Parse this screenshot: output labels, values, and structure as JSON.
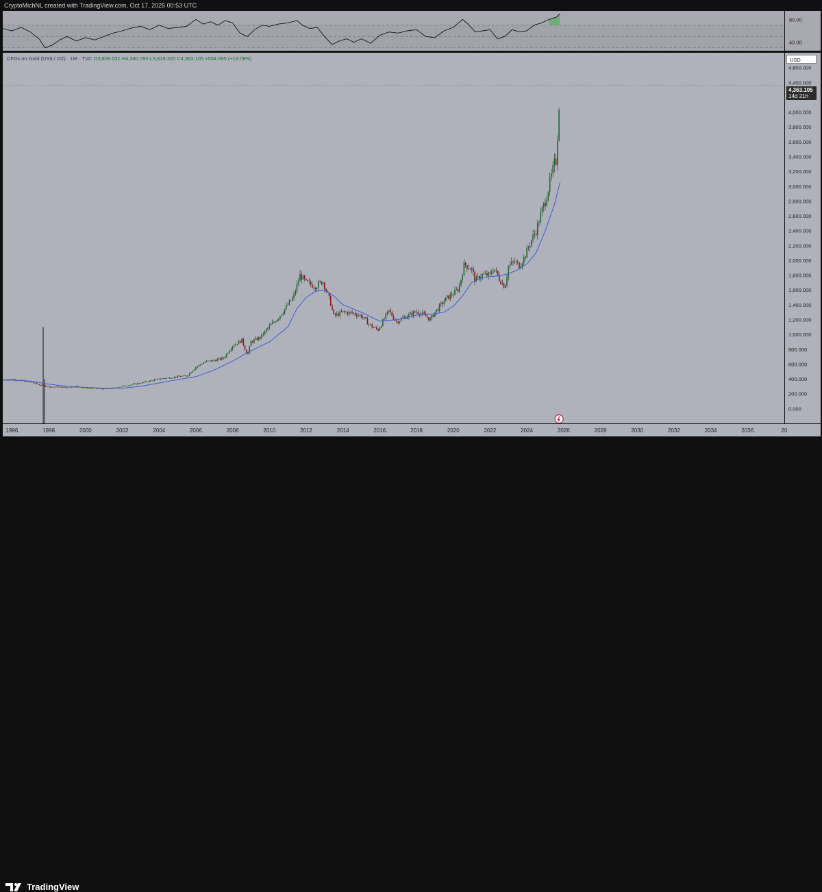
{
  "header": {
    "title": "CryptoMichNL created with TradingView.com, Oct 17, 2025 00:53 UTC"
  },
  "symbol": {
    "name": "CFDs on Gold (US$ / OZ) · 1M · TVC",
    "open": "O3,859.031",
    "high": "H4,380.790",
    "low": "L3,819.320",
    "close": "C4,363.105",
    "change": "+504.695 (+13.08%)"
  },
  "currency": "USD",
  "last_price": {
    "value": "4,363.105",
    "countdown": "14d 21h"
  },
  "footer": {
    "brand": "TradingView"
  },
  "colors": {
    "up": "#1d6b2c",
    "down": "#8b1a1a",
    "ma": "#3d5bd9",
    "rsi_line": "#111111",
    "rsi_overbought": "#4caf50",
    "rsi_oversold": "#e53935"
  },
  "chart_data": [
    {
      "type": "line",
      "panel": "RSI",
      "y_ticks": [
        "80.00",
        "40.00"
      ],
      "ylim": [
        25,
        95
      ],
      "bands": [
        70,
        50,
        30
      ],
      "x": [
        1995.5,
        1996.0,
        1996.5,
        1997.0,
        1997.5,
        1997.8,
        1998.2,
        1998.6,
        1999.0,
        1999.5,
        2000.0,
        2000.5,
        2001.0,
        2001.5,
        2002.0,
        2002.5,
        2003.0,
        2003.5,
        2004.0,
        2004.5,
        2005.0,
        2005.5,
        2006.0,
        2006.4,
        2006.8,
        2007.2,
        2007.6,
        2008.0,
        2008.4,
        2008.8,
        2009.2,
        2009.6,
        2010.0,
        2010.5,
        2011.0,
        2011.5,
        2011.8,
        2012.2,
        2012.6,
        2013.0,
        2013.4,
        2013.8,
        2014.2,
        2014.6,
        2015.0,
        2015.5,
        2016.0,
        2016.5,
        2017.0,
        2017.5,
        2018.0,
        2018.5,
        2019.0,
        2019.5,
        2020.0,
        2020.5,
        2020.8,
        2021.2,
        2021.6,
        2022.0,
        2022.4,
        2022.8,
        2023.2,
        2023.6,
        2024.0,
        2024.4,
        2024.8,
        2025.2,
        2025.6,
        2025.8
      ],
      "values": [
        64,
        60,
        66,
        58,
        45,
        30,
        35,
        44,
        50,
        42,
        48,
        44,
        50,
        56,
        60,
        65,
        68,
        62,
        70,
        64,
        66,
        68,
        80,
        72,
        76,
        70,
        78,
        74,
        56,
        50,
        62,
        70,
        68,
        72,
        74,
        78,
        70,
        64,
        66,
        50,
        36,
        42,
        46,
        40,
        46,
        38,
        52,
        58,
        56,
        60,
        62,
        50,
        48,
        60,
        66,
        80,
        72,
        58,
        60,
        62,
        46,
        50,
        62,
        58,
        60,
        70,
        74,
        80,
        84,
        90
      ],
      "x_range": [
        1995.5,
        2038.0
      ]
    },
    {
      "type": "candlestick",
      "panel": "price",
      "y_ticks": [
        "4,600.000",
        "4,400.000",
        "4,200.000",
        "4,000.000",
        "3,800.000",
        "3,600.000",
        "3,400.000",
        "3,200.000",
        "3,000.000",
        "2,800.000",
        "2,600.000",
        "2,400.000",
        "2,200.000",
        "2,000.000",
        "1,800.000",
        "1,600.000",
        "1,400.000",
        "1,200.000",
        "1,000.000",
        "800.000",
        "600.000",
        "400.000",
        "200.000",
        "0.000"
      ],
      "ylim": [
        -200,
        4800
      ],
      "x_ticks": [
        "1996",
        "1998",
        "2000",
        "2002",
        "2004",
        "2006",
        "2008",
        "2010",
        "2012",
        "2014",
        "2016",
        "2018",
        "2020",
        "2022",
        "2024",
        "2026",
        "2028",
        "2030",
        "2032",
        "2034",
        "2036",
        "20"
      ],
      "x_range": [
        1995.5,
        2038.0
      ],
      "price_x": [
        1995.5,
        1996.0,
        1997.0,
        1997.5,
        1998.0,
        1999.0,
        1999.5,
        2000.0,
        2001.0,
        2001.5,
        2002.0,
        2003.0,
        2004.0,
        2005.0,
        2005.5,
        2006.0,
        2006.5,
        2007.0,
        2007.5,
        2008.0,
        2008.5,
        2008.8,
        2009.0,
        2009.5,
        2010.0,
        2010.5,
        2011.0,
        2011.3,
        2011.67,
        2012.0,
        2012.5,
        2012.9,
        2013.3,
        2013.5,
        2014.0,
        2014.5,
        2015.0,
        2015.5,
        2015.9,
        2016.5,
        2016.9,
        2017.5,
        2018.0,
        2018.5,
        2018.75,
        2019.0,
        2019.6,
        2020.0,
        2020.3,
        2020.6,
        2021.0,
        2021.2,
        2021.5,
        2022.0,
        2022.2,
        2022.5,
        2022.8,
        2023.0,
        2023.3,
        2023.6,
        2023.9,
        2024.2,
        2024.5,
        2024.8,
        2025.0,
        2025.3,
        2025.5,
        2025.6,
        2025.7,
        2025.8
      ],
      "price_close": [
        385,
        395,
        360,
        320,
        295,
        285,
        300,
        280,
        265,
        275,
        300,
        345,
        400,
        430,
        440,
        560,
        630,
        650,
        680,
        850,
        920,
        720,
        900,
        960,
        1110,
        1230,
        1400,
        1500,
        1800,
        1700,
        1650,
        1720,
        1450,
        1250,
        1300,
        1290,
        1250,
        1120,
        1060,
        1320,
        1170,
        1250,
        1310,
        1250,
        1200,
        1300,
        1480,
        1550,
        1620,
        1950,
        1880,
        1720,
        1800,
        1800,
        1900,
        1750,
        1640,
        1920,
        1980,
        1930,
        2060,
        2250,
        2400,
        2650,
        2800,
        3100,
        3300,
        3350,
        3850,
        4363
      ],
      "ma_x": [
        1995.5,
        1997.0,
        1998.0,
        1999.0,
        2000.0,
        2001.0,
        2002.0,
        2003.0,
        2004.0,
        2005.0,
        2006.0,
        2007.0,
        2008.0,
        2009.0,
        2010.0,
        2011.0,
        2011.5,
        2012.0,
        2012.5,
        2013.0,
        2013.5,
        2014.0,
        2015.0,
        2016.0,
        2017.0,
        2018.0,
        2019.0,
        2019.5,
        2020.0,
        2020.5,
        2021.0,
        2021.5,
        2022.0,
        2022.5,
        2023.0,
        2023.5,
        2024.0,
        2024.5,
        2025.0,
        2025.5,
        2025.8
      ],
      "ma_values": [
        390,
        370,
        330,
        300,
        285,
        275,
        275,
        300,
        345,
        390,
        430,
        520,
        640,
        780,
        900,
        1100,
        1350,
        1500,
        1580,
        1600,
        1520,
        1400,
        1300,
        1180,
        1200,
        1260,
        1280,
        1300,
        1380,
        1520,
        1700,
        1760,
        1780,
        1790,
        1820,
        1870,
        1950,
        2100,
        2400,
        2750,
        3050
      ],
      "spike": {
        "x": 1997.7,
        "high": 1100,
        "low": -200
      }
    }
  ]
}
